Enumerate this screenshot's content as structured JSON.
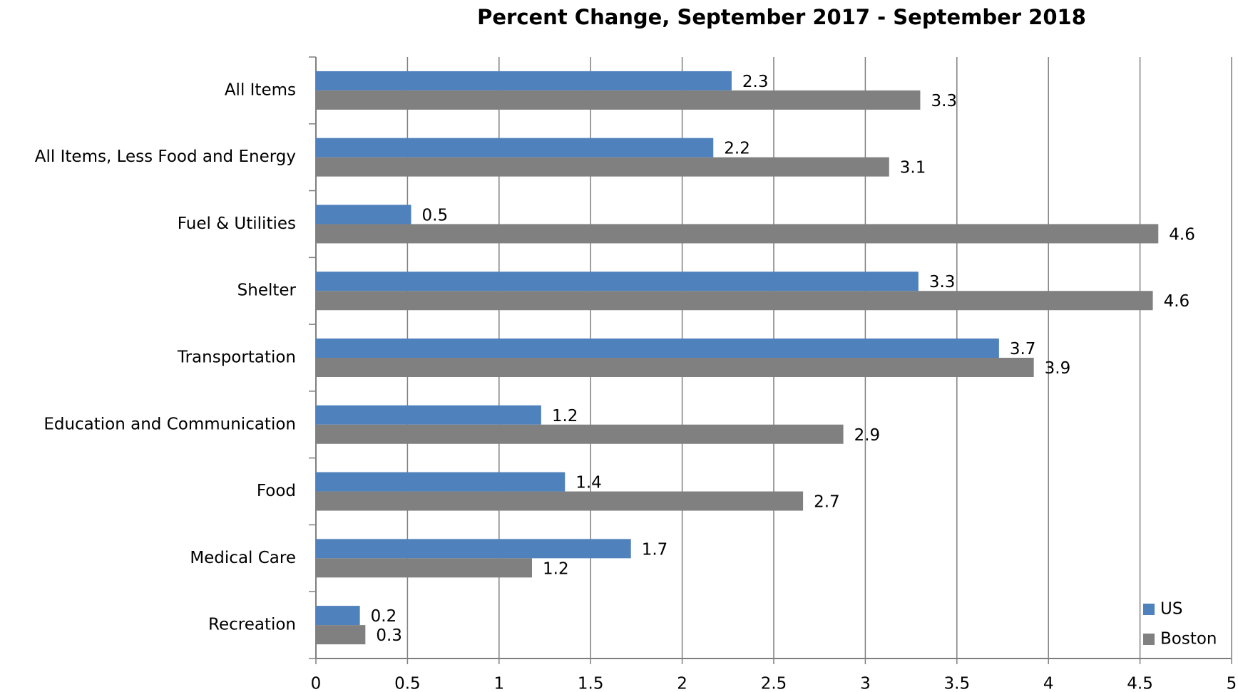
{
  "chart_data": {
    "type": "barh",
    "title": "Percent Change, September 2017 - September 2018",
    "categories": [
      "All Items",
      "All Items, Less Food and Energy",
      "Fuel & Utilities",
      "Shelter",
      "Transportation",
      "Education and Communication",
      "Food",
      "Medical Care",
      "Recreation"
    ],
    "series": [
      {
        "name": "US",
        "color": "#4f81bd",
        "values": [
          2.27,
          2.17,
          0.52,
          3.29,
          3.73,
          1.23,
          1.36,
          1.72,
          0.24
        ],
        "value_labels": [
          "2.3",
          "2.2",
          "0.5",
          "3.3",
          "3.7",
          "1.2",
          "1.4",
          "1.7",
          "0.2"
        ]
      },
      {
        "name": "Boston",
        "color": "#808080",
        "values": [
          3.3,
          3.13,
          4.6,
          4.57,
          3.92,
          2.88,
          2.66,
          1.18,
          0.27
        ],
        "value_labels": [
          "3.3",
          "3.1",
          "4.6",
          "4.6",
          "3.9",
          "2.9",
          "2.7",
          "1.2",
          "0.3"
        ]
      }
    ],
    "xlim": [
      0,
      5
    ],
    "xticks": [
      0,
      0.5,
      1,
      1.5,
      2,
      2.5,
      3,
      3.5,
      4,
      4.5,
      5
    ],
    "grid": true,
    "legend": "lower right"
  }
}
